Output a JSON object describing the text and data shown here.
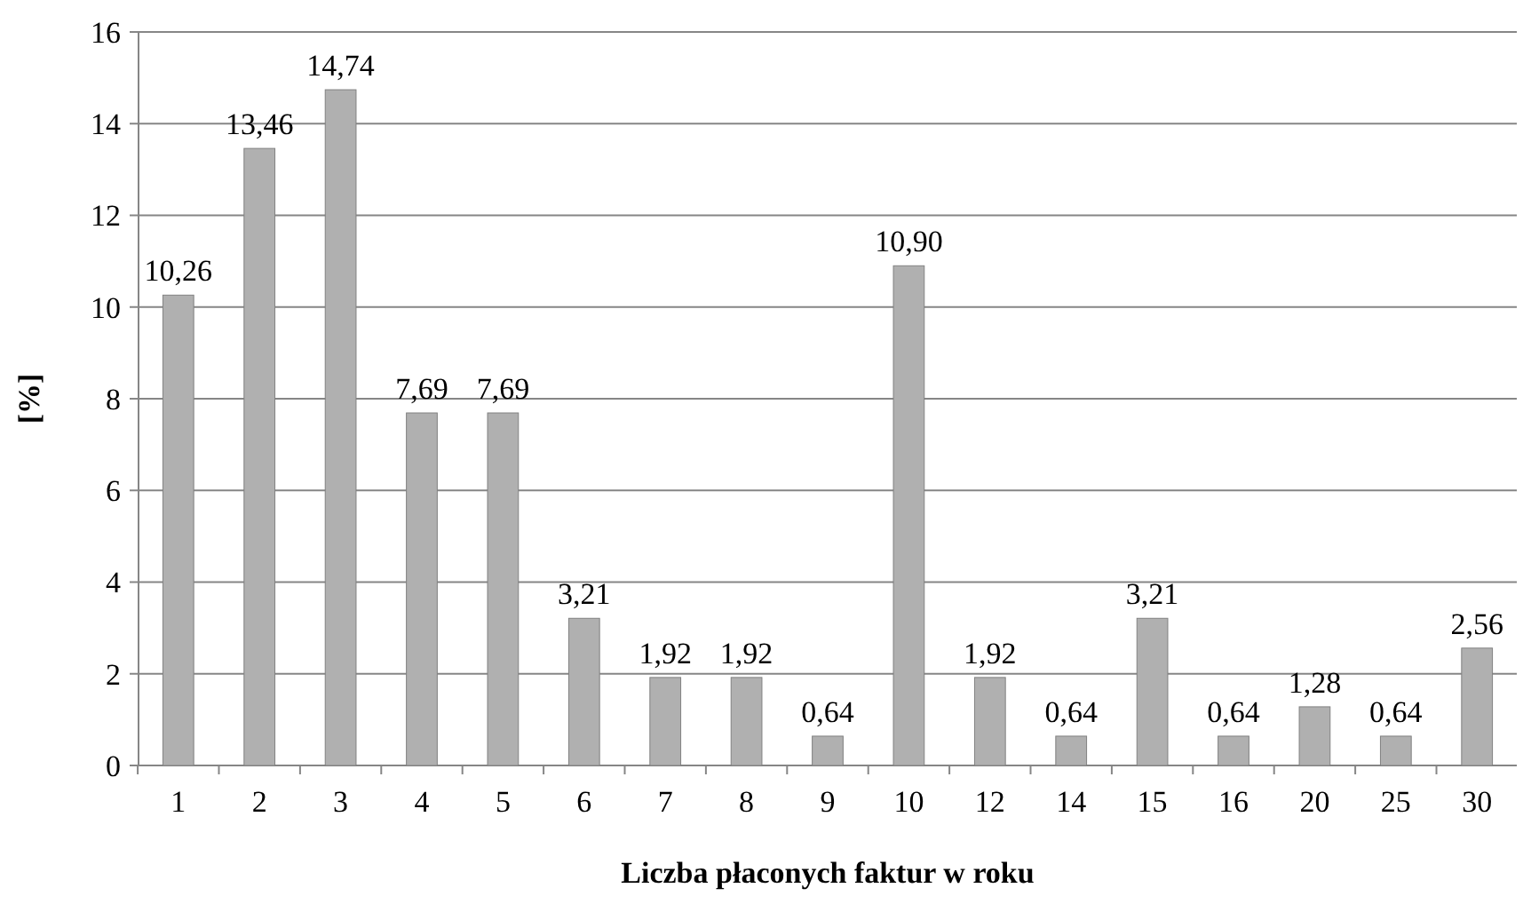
{
  "chart_data": {
    "type": "bar",
    "xlabel": "Liczba płaconych faktur w roku",
    "ylabel": "[%]",
    "categories": [
      "1",
      "2",
      "3",
      "4",
      "5",
      "6",
      "7",
      "8",
      "9",
      "10",
      "12",
      "14",
      "15",
      "16",
      "20",
      "25",
      "30"
    ],
    "values": [
      10.26,
      13.46,
      14.74,
      7.69,
      7.69,
      3.21,
      1.92,
      1.92,
      0.64,
      10.9,
      1.92,
      0.64,
      3.21,
      0.64,
      1.28,
      0.64,
      2.56
    ],
    "value_labels": [
      "10,26",
      "13,46",
      "14,74",
      "7,69",
      "7,69",
      "3,21",
      "1,92",
      "1,92",
      "0,64",
      "10,90",
      "1,92",
      "0,64",
      "3,21",
      "0,64",
      "1,28",
      "0,64",
      "2,56"
    ],
    "color": "#b0b0b0",
    "ylim": [
      0,
      16
    ],
    "yticks": [
      0,
      2,
      4,
      6,
      8,
      10,
      12,
      14,
      16
    ],
    "grid": "y"
  }
}
